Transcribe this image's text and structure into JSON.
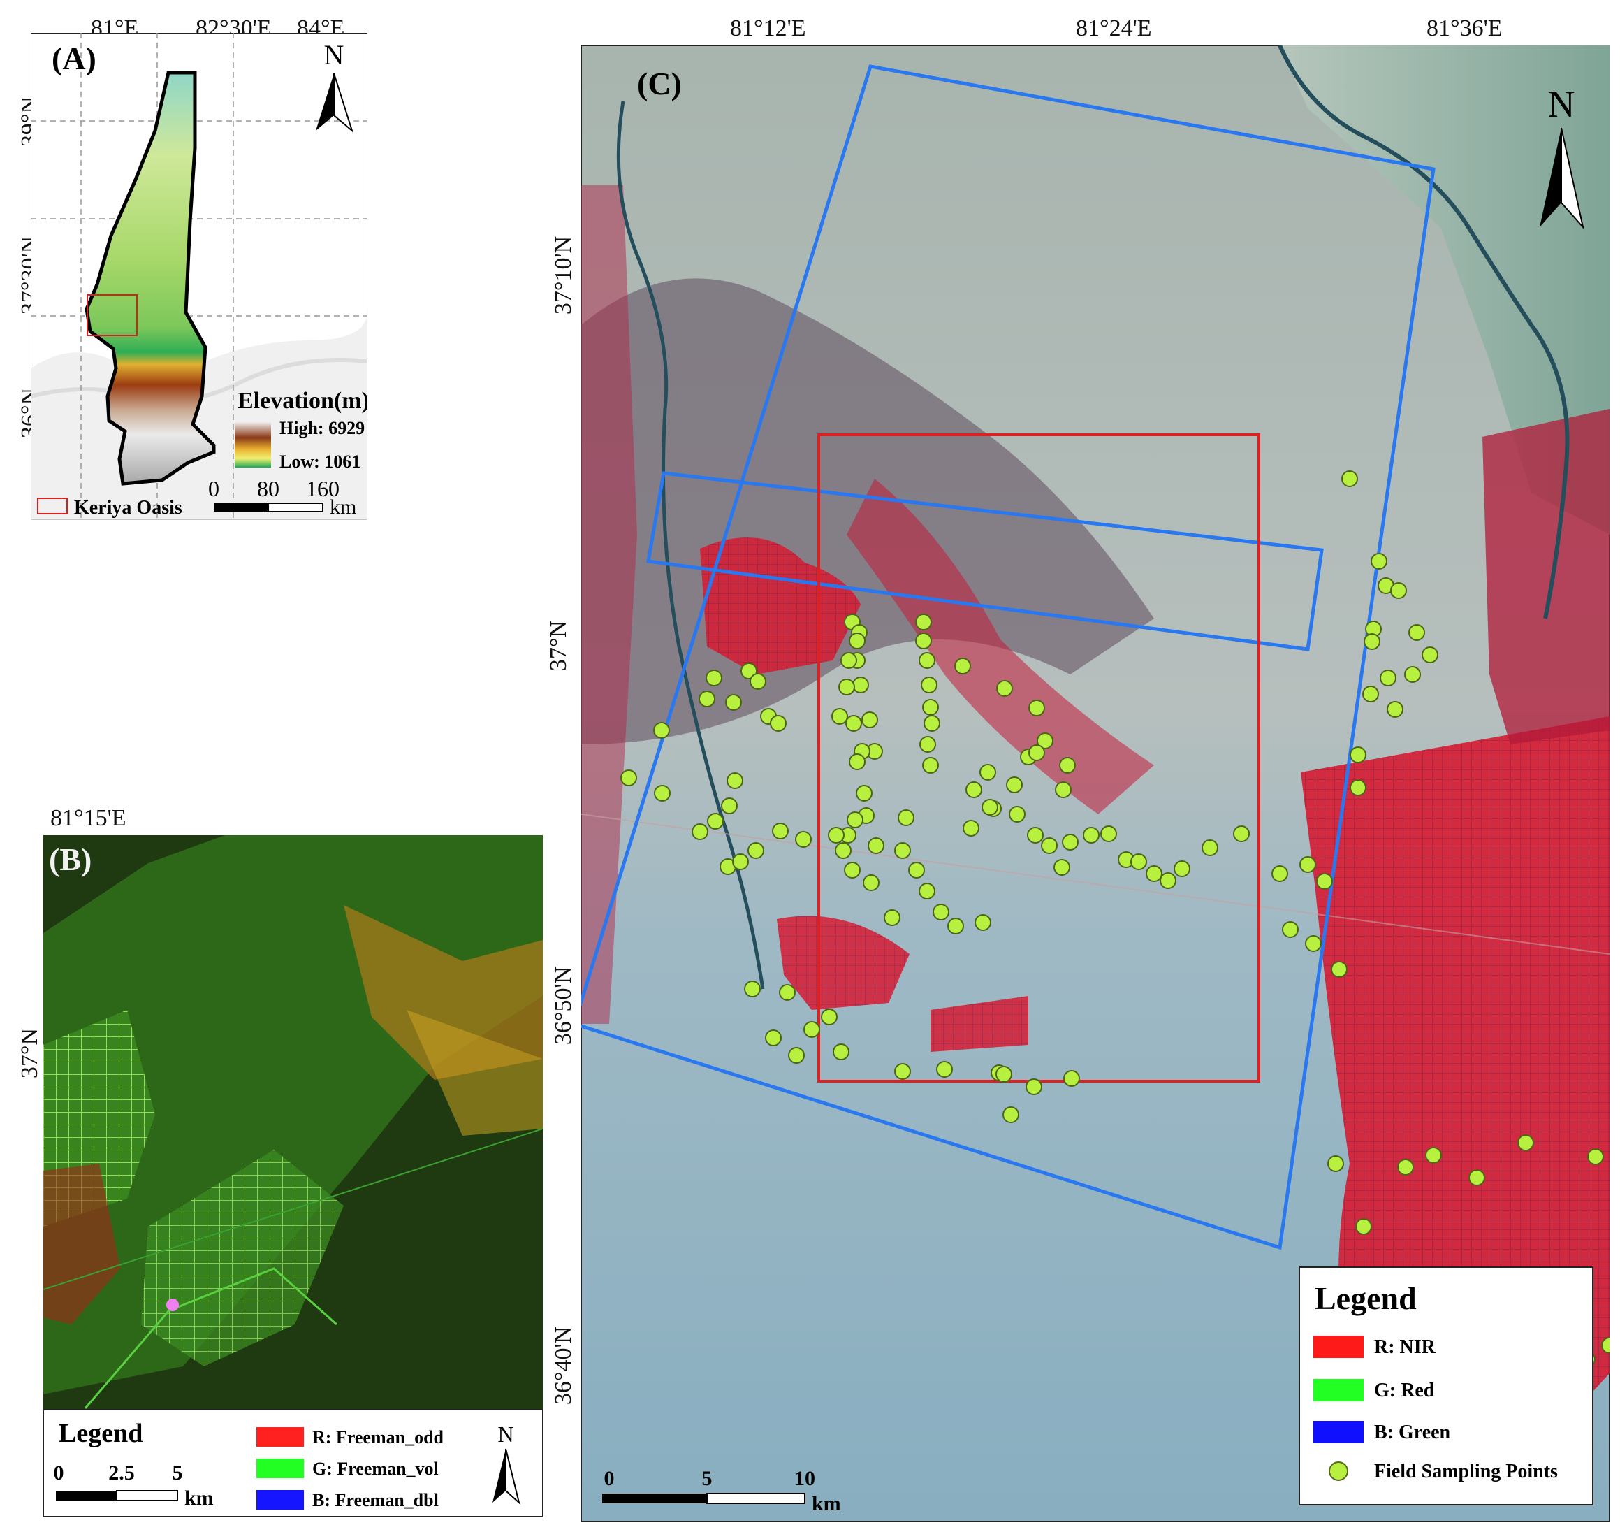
{
  "panel_a": {
    "label": "(A)",
    "top_ticks": [
      "81°E",
      "82°30'E",
      "84°E"
    ],
    "left_ticks": [
      "39°N",
      "37°30'N",
      "36°N"
    ],
    "north": "N",
    "elevation_title": "Elevation(m)",
    "elevation_high": "High: 6929",
    "elevation_low": "Low: 1061",
    "scale_labels": [
      "0",
      "80",
      "160"
    ],
    "scale_unit": "km",
    "keriya_label": "Keriya Oasis"
  },
  "panel_b": {
    "label": "(B)",
    "top_tick": "81°15'E",
    "left_tick": "37°N",
    "legend_title": "Legend",
    "scale_labels": [
      "0",
      "2.5",
      "5"
    ],
    "scale_unit": "km",
    "north": "N",
    "legend_items": [
      {
        "label": "R: Freeman_odd",
        "color": "#ff2020"
      },
      {
        "label": "G: Freeman_vol",
        "color": "#22ff22"
      },
      {
        "label": "B: Freeman_dbl",
        "color": "#1515ff"
      }
    ]
  },
  "panel_c": {
    "label": "(C)",
    "top_ticks": [
      "81°12'E",
      "81°24'E",
      "81°36'E"
    ],
    "left_ticks": [
      "37°10'N",
      "37°N",
      "36°50'N",
      "36°40'N"
    ],
    "north": "N",
    "scale_labels": [
      "0",
      "5",
      "10"
    ],
    "scale_unit": "km",
    "legend_title": "Legend",
    "legend_items": [
      {
        "label": "R: NIR",
        "color": "#ff1a1a"
      },
      {
        "label": "G: Red",
        "color": "#22ff22"
      },
      {
        "label": "B: Green",
        "color": "#1010ff"
      }
    ],
    "points_label": "Field Sampling Points",
    "point_color": "#b8f040",
    "frame_color_blue": "#2a78f0",
    "frame_color_red": "#e02020"
  }
}
